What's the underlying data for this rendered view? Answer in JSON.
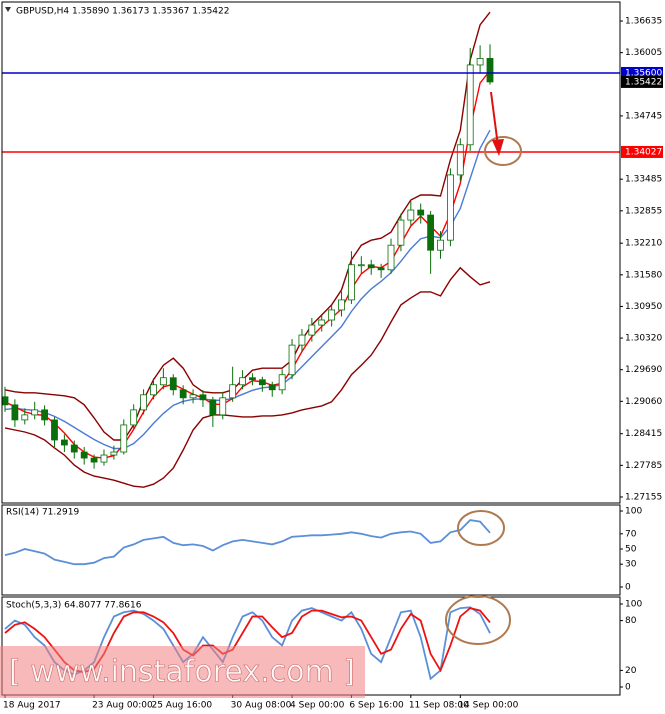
{
  "chart_data": [
    {
      "type": "candlestick",
      "title": "GBPUSD,H4  1.35890 1.36173 1.35367 1.35422",
      "annotation": "[ www.instaforex.com ]",
      "categories": [
        "18 Aug 2017",
        null,
        null,
        null,
        null,
        null,
        null,
        null,
        null,
        "23 Aug 00:00",
        null,
        null,
        null,
        null,
        null,
        "25 Aug 16:00",
        null,
        null,
        null,
        null,
        null,
        null,
        null,
        "30 Aug 08:00",
        null,
        null,
        null,
        null,
        null,
        "4 Sep 00:00",
        null,
        null,
        null,
        null,
        null,
        "6 Sep 16:00",
        null,
        null,
        null,
        null,
        null,
        "11 Sep 08:00",
        null,
        null,
        null,
        null,
        "14 Sep 00:00",
        null,
        null,
        null
      ],
      "open": [
        1.2915,
        1.2899,
        1.2869,
        1.2879,
        1.2889,
        1.2869,
        1.2829,
        1.2819,
        1.2805,
        1.2793,
        1.2785,
        1.2799,
        1.2805,
        1.2859,
        1.2889,
        1.2919,
        1.2939,
        1.2953,
        1.2929,
        1.2913,
        1.2919,
        1.2909,
        1.2879,
        1.2913,
        1.2939,
        1.2953,
        1.2949,
        1.2939,
        1.2929,
        1.2959,
        1.3018,
        1.3038,
        1.3058,
        1.3068,
        1.3088,
        1.3108,
        1.3178,
        1.3178,
        1.3172,
        1.3168,
        1.3217,
        1.3267,
        1.3287,
        1.3277,
        1.3207,
        1.3227,
        1.3357,
        1.3417,
        1.3576,
        1.3589
      ],
      "high": [
        1.2935,
        1.291,
        1.2892,
        1.2905,
        1.2898,
        1.2875,
        1.284,
        1.2828,
        1.2815,
        1.28,
        1.281,
        1.2818,
        1.287,
        1.29,
        1.293,
        1.2952,
        1.2972,
        1.296,
        1.2938,
        1.293,
        1.2928,
        1.2915,
        1.2925,
        1.2975,
        1.2968,
        1.2962,
        1.2955,
        1.2945,
        1.297,
        1.303,
        1.305,
        1.3072,
        1.308,
        1.31,
        1.3125,
        1.3205,
        1.3195,
        1.3188,
        1.318,
        1.323,
        1.328,
        1.3305,
        1.33,
        1.3285,
        1.3245,
        1.337,
        1.343,
        1.361,
        1.3615,
        1.36173
      ],
      "low": [
        1.2885,
        1.2855,
        1.286,
        1.287,
        1.2858,
        1.2815,
        1.2805,
        1.2792,
        1.278,
        1.2772,
        1.2778,
        1.279,
        1.28,
        1.285,
        1.288,
        1.291,
        1.293,
        1.2918,
        1.29,
        1.2902,
        1.2895,
        1.2855,
        1.287,
        1.2905,
        1.293,
        1.2938,
        1.2925,
        1.2915,
        1.292,
        1.295,
        1.3005,
        1.3025,
        1.3045,
        1.3055,
        1.3075,
        1.31,
        1.316,
        1.3158,
        1.3152,
        1.316,
        1.3205,
        1.3255,
        1.326,
        1.316,
        1.319,
        1.3215,
        1.3345,
        1.3405,
        1.356,
        1.35367
      ],
      "close": [
        1.2899,
        1.2869,
        1.2879,
        1.2889,
        1.2869,
        1.2829,
        1.2819,
        1.2805,
        1.2793,
        1.2785,
        1.2799,
        1.2805,
        1.2859,
        1.2889,
        1.2919,
        1.2939,
        1.2953,
        1.2929,
        1.2913,
        1.2919,
        1.2909,
        1.2879,
        1.2913,
        1.2939,
        1.2953,
        1.2949,
        1.2939,
        1.2929,
        1.2959,
        1.3018,
        1.3038,
        1.3058,
        1.3068,
        1.3088,
        1.3108,
        1.3178,
        1.3178,
        1.3172,
        1.3168,
        1.3217,
        1.3267,
        1.3287,
        1.3277,
        1.3207,
        1.3227,
        1.3357,
        1.3417,
        1.3576,
        1.3589,
        1.35422
      ],
      "color": "#0a6e0a",
      "up_color": "#ffffff",
      "down_color": "#0a6e0a",
      "series": [
        {
          "color": "#8b0000",
          "values": [
            1.2929,
            1.2925,
            1.2923,
            1.2923,
            1.2921,
            1.2919,
            1.2917,
            1.2913,
            1.2899,
            1.2873,
            1.2845,
            1.2829,
            1.2829,
            1.2859,
            1.2909,
            1.2949,
            1.2978,
            1.2992,
            1.2972,
            1.2939,
            1.2925,
            1.2923,
            1.2923,
            1.2929,
            1.2949,
            1.2968,
            1.2972,
            1.2972,
            1.2972,
            1.2988,
            1.3028,
            1.3058,
            1.3078,
            1.3098,
            1.3128,
            1.3188,
            1.3217,
            1.3227,
            1.3231,
            1.3243,
            1.3277,
            1.3307,
            1.3317,
            1.3317,
            1.3315,
            1.3387,
            1.3446,
            1.3586,
            1.3656,
            1.3681
          ]
        },
        {
          "color": "#8b0000",
          "values": [
            1.2853,
            1.2849,
            1.2845,
            1.2839,
            1.2829,
            1.2813,
            1.2799,
            1.2779,
            1.2765,
            1.2757,
            1.2753,
            1.2749,
            1.2743,
            1.2737,
            1.2735,
            1.2741,
            1.2753,
            1.2773,
            1.2809,
            1.2849,
            1.2873,
            1.2879,
            1.2879,
            1.2877,
            1.2875,
            1.2875,
            1.2877,
            1.2877,
            1.2879,
            1.2883,
            1.2889,
            1.2893,
            1.2897,
            1.2905,
            1.2929,
            1.2959,
            1.2978,
            1.2998,
            1.3028,
            1.3064,
            1.3098,
            1.3112,
            1.3124,
            1.3124,
            1.3116,
            1.3148,
            1.3172,
            1.3154,
            1.3138,
            1.3144
          ]
        },
        {
          "color": "#4a7bd6",
          "values": [
            1.289,
            1.2892,
            1.289,
            1.2888,
            1.2884,
            1.2876,
            1.2866,
            1.2854,
            1.2842,
            1.283,
            1.282,
            1.2812,
            1.2812,
            1.2822,
            1.284,
            1.2862,
            1.2882,
            1.2898,
            1.2906,
            1.291,
            1.2911,
            1.2908,
            1.2908,
            1.2912,
            1.292,
            1.2928,
            1.2933,
            1.2935,
            1.294,
            1.2955,
            1.2975,
            1.2995,
            1.3015,
            1.3035,
            1.3055,
            1.3085,
            1.311,
            1.313,
            1.3145,
            1.3162,
            1.3185,
            1.321,
            1.323,
            1.3235,
            1.3232,
            1.3255,
            1.329,
            1.335,
            1.341,
            1.3446
          ]
        },
        {
          "color": "#ff0000",
          "values": [
            1.2905,
            1.2895,
            1.2885,
            1.288,
            1.2878,
            1.2862,
            1.2843,
            1.282,
            1.2805,
            1.2795,
            1.2793,
            1.2798,
            1.282,
            1.285,
            1.2885,
            1.2915,
            1.2935,
            1.294,
            1.293,
            1.292,
            1.2913,
            1.29,
            1.29,
            1.2912,
            1.2935,
            1.2947,
            1.2945,
            1.2938,
            1.2942,
            1.297,
            1.3005,
            1.3035,
            1.3055,
            1.3072,
            1.309,
            1.313,
            1.316,
            1.3175,
            1.3172,
            1.3185,
            1.322,
            1.3255,
            1.3275,
            1.3255,
            1.3235,
            1.328,
            1.334,
            1.345,
            1.354,
            1.3565
          ]
        }
      ],
      "hlines": [
        {
          "value": 1.356,
          "label": "1.35600",
          "color": "#0000cc"
        },
        {
          "value": 1.34027,
          "color": "#ff0000"
        }
      ],
      "ylim": [
        1.27035,
        1.36994
      ],
      "yticks": [
        1.36635,
        1.36005,
        1.34745,
        1.33485,
        1.32855,
        {
          "value": 1.3221,
          "label": "1.32210"
        },
        {
          "value": 1.3158,
          "label": "1.31580"
        },
        {
          "value": 1.3095,
          "label": "1.30950"
        },
        {
          "value": 1.3032,
          "label": "1.30320"
        },
        {
          "value": 1.2969,
          "label": "1.29690"
        },
        {
          "value": 1.2906,
          "label": "1.29060"
        },
        1.28415,
        1.27785,
        1.27155
      ]
    },
    {
      "type": "line",
      "title": "RSI(14) 71.2919",
      "series": [
        {
          "color": "#5b8fd9",
          "values": [
            42,
            45,
            50,
            47,
            44,
            36,
            33,
            30,
            30,
            32,
            38,
            40,
            52,
            56,
            62,
            64,
            66,
            58,
            55,
            56,
            54,
            48,
            55,
            60,
            62,
            60,
            58,
            56,
            60,
            66,
            67,
            68,
            68,
            69,
            70,
            72,
            70,
            67,
            65,
            70,
            72,
            73,
            70,
            58,
            60,
            72,
            75,
            88,
            86,
            71.2919
          ]
        }
      ],
      "ylim": [
        0,
        100
      ],
      "yticks": [
        100,
        70,
        50,
        30,
        0
      ]
    },
    {
      "type": "line",
      "title": "Stoch(5,3,3) 64.8077 77.8616",
      "series": [
        {
          "color": "#5b8fd9",
          "values": [
            70,
            80,
            75,
            60,
            50,
            30,
            20,
            15,
            20,
            30,
            60,
            85,
            90,
            92,
            88,
            80,
            70,
            50,
            30,
            40,
            60,
            45,
            30,
            60,
            85,
            90,
            80,
            60,
            50,
            80,
            92,
            95,
            90,
            85,
            80,
            90,
            70,
            40,
            30,
            60,
            90,
            92,
            60,
            10,
            20,
            90,
            95,
            96,
            88,
            64.8077
          ]
        },
        {
          "color": "#ee1111",
          "values": [
            65,
            75,
            78,
            70,
            60,
            45,
            30,
            20,
            18,
            22,
            40,
            65,
            85,
            90,
            90,
            85,
            78,
            65,
            45,
            38,
            50,
            50,
            40,
            45,
            65,
            85,
            85,
            72,
            60,
            65,
            85,
            92,
            92,
            88,
            84,
            85,
            80,
            60,
            40,
            45,
            70,
            88,
            80,
            40,
            20,
            50,
            85,
            95,
            92,
            77.8616
          ]
        }
      ],
      "ylim": [
        0,
        100
      ],
      "yticks": [
        100,
        80,
        20,
        0
      ]
    }
  ]
}
